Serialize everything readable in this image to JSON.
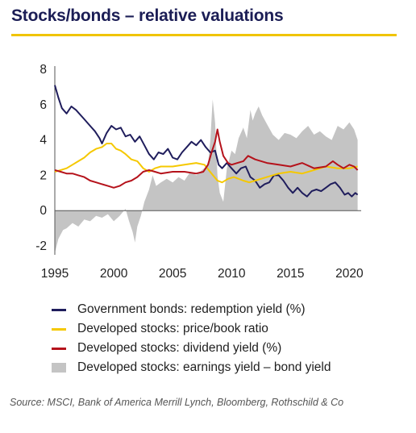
{
  "title": "Stocks/bonds – relative valuations",
  "source": "Source: MSCI, Bank of America Merrill Lynch, Bloomberg, Rothschild & Co",
  "chart_data": {
    "type": "line",
    "title": "Stocks/bonds – relative valuations",
    "xlabel": "",
    "ylabel": "",
    "xlim": [
      1995,
      2021
    ],
    "ylim": [
      -2.5,
      8
    ],
    "xticks": [
      1995,
      2000,
      2005,
      2010,
      2015,
      2020
    ],
    "yticks": [
      -2,
      0,
      2,
      4,
      6,
      8
    ],
    "grid": false,
    "legend_position": "bottom",
    "series": [
      {
        "name": "Government bonds: redemption yield (%)",
        "kind": "line",
        "color": "#1f1d5c",
        "points": [
          [
            1995,
            7.1
          ],
          [
            1995.3,
            6.4
          ],
          [
            1995.6,
            5.8
          ],
          [
            1996,
            5.5
          ],
          [
            1996.4,
            5.9
          ],
          [
            1996.8,
            5.7
          ],
          [
            1997.2,
            5.4
          ],
          [
            1997.6,
            5.1
          ],
          [
            1998,
            4.8
          ],
          [
            1998.4,
            4.5
          ],
          [
            1998.8,
            4.1
          ],
          [
            1999,
            3.8
          ],
          [
            1999.4,
            4.4
          ],
          [
            1999.8,
            4.8
          ],
          [
            2000.2,
            4.6
          ],
          [
            2000.6,
            4.7
          ],
          [
            2001,
            4.2
          ],
          [
            2001.4,
            4.3
          ],
          [
            2001.8,
            3.9
          ],
          [
            2002.2,
            4.2
          ],
          [
            2002.6,
            3.7
          ],
          [
            2003,
            3.2
          ],
          [
            2003.4,
            2.9
          ],
          [
            2003.8,
            3.3
          ],
          [
            2004.2,
            3.2
          ],
          [
            2004.6,
            3.5
          ],
          [
            2005,
            3.0
          ],
          [
            2005.4,
            2.9
          ],
          [
            2005.8,
            3.3
          ],
          [
            2006.2,
            3.6
          ],
          [
            2006.6,
            3.9
          ],
          [
            2007,
            3.7
          ],
          [
            2007.4,
            4.0
          ],
          [
            2007.8,
            3.6
          ],
          [
            2008.2,
            3.3
          ],
          [
            2008.6,
            3.4
          ],
          [
            2008.9,
            2.6
          ],
          [
            2009.2,
            2.4
          ],
          [
            2009.6,
            2.7
          ],
          [
            2010,
            2.4
          ],
          [
            2010.4,
            2.1
          ],
          [
            2010.8,
            2.4
          ],
          [
            2011.2,
            2.5
          ],
          [
            2011.6,
            1.9
          ],
          [
            2012,
            1.7
          ],
          [
            2012.4,
            1.3
          ],
          [
            2012.8,
            1.5
          ],
          [
            2013.2,
            1.6
          ],
          [
            2013.6,
            2.0
          ],
          [
            2014,
            2.0
          ],
          [
            2014.4,
            1.7
          ],
          [
            2014.8,
            1.3
          ],
          [
            2015.2,
            1.0
          ],
          [
            2015.6,
            1.3
          ],
          [
            2016,
            1.0
          ],
          [
            2016.4,
            0.8
          ],
          [
            2016.8,
            1.1
          ],
          [
            2017.2,
            1.2
          ],
          [
            2017.6,
            1.1
          ],
          [
            2018,
            1.3
          ],
          [
            2018.4,
            1.5
          ],
          [
            2018.8,
            1.6
          ],
          [
            2019.2,
            1.3
          ],
          [
            2019.6,
            0.9
          ],
          [
            2019.9,
            1.0
          ],
          [
            2020.2,
            0.8
          ],
          [
            2020.5,
            1.0
          ],
          [
            2020.7,
            0.9
          ]
        ]
      },
      {
        "name": "Developed stocks: price/book ratio",
        "kind": "line",
        "color": "#f5c800",
        "points": [
          [
            1995,
            2.2
          ],
          [
            1995.5,
            2.3
          ],
          [
            1996,
            2.4
          ],
          [
            1996.5,
            2.6
          ],
          [
            1997,
            2.8
          ],
          [
            1997.5,
            3.0
          ],
          [
            1998,
            3.3
          ],
          [
            1998.5,
            3.5
          ],
          [
            1999,
            3.6
          ],
          [
            1999.4,
            3.8
          ],
          [
            1999.8,
            3.8
          ],
          [
            2000.2,
            3.5
          ],
          [
            2000.6,
            3.4
          ],
          [
            2001,
            3.2
          ],
          [
            2001.5,
            2.9
          ],
          [
            2002,
            2.8
          ],
          [
            2002.5,
            2.4
          ],
          [
            2003,
            2.2
          ],
          [
            2003.5,
            2.4
          ],
          [
            2004,
            2.5
          ],
          [
            2005,
            2.5
          ],
          [
            2006,
            2.6
          ],
          [
            2007,
            2.7
          ],
          [
            2007.7,
            2.6
          ],
          [
            2008.3,
            2.1
          ],
          [
            2008.8,
            1.7
          ],
          [
            2009.2,
            1.6
          ],
          [
            2009.7,
            1.8
          ],
          [
            2010.2,
            1.9
          ],
          [
            2011,
            1.7
          ],
          [
            2011.5,
            1.6
          ],
          [
            2012,
            1.7
          ],
          [
            2013,
            1.9
          ],
          [
            2014,
            2.1
          ],
          [
            2015,
            2.2
          ],
          [
            2016,
            2.1
          ],
          [
            2017,
            2.3
          ],
          [
            2018,
            2.5
          ],
          [
            2019,
            2.4
          ],
          [
            2020,
            2.4
          ],
          [
            2020.7,
            2.5
          ]
        ]
      },
      {
        "name": "Developed stocks: dividend yield (%)",
        "kind": "line",
        "color": "#b5121b",
        "points": [
          [
            1995,
            2.3
          ],
          [
            1995.5,
            2.2
          ],
          [
            1996,
            2.1
          ],
          [
            1996.5,
            2.1
          ],
          [
            1997,
            2.0
          ],
          [
            1997.5,
            1.9
          ],
          [
            1998,
            1.7
          ],
          [
            1998.5,
            1.6
          ],
          [
            1999,
            1.5
          ],
          [
            1999.5,
            1.4
          ],
          [
            2000,
            1.3
          ],
          [
            2000.5,
            1.4
          ],
          [
            2001,
            1.6
          ],
          [
            2001.5,
            1.7
          ],
          [
            2002,
            1.9
          ],
          [
            2002.5,
            2.2
          ],
          [
            2003,
            2.3
          ],
          [
            2003.5,
            2.2
          ],
          [
            2004,
            2.1
          ],
          [
            2005,
            2.2
          ],
          [
            2006,
            2.2
          ],
          [
            2007,
            2.1
          ],
          [
            2007.6,
            2.2
          ],
          [
            2008,
            2.6
          ],
          [
            2008.3,
            3.3
          ],
          [
            2008.6,
            3.9
          ],
          [
            2008.8,
            4.6
          ],
          [
            2009,
            3.9
          ],
          [
            2009.3,
            3.1
          ],
          [
            2009.7,
            2.7
          ],
          [
            2010,
            2.6
          ],
          [
            2010.5,
            2.7
          ],
          [
            2011,
            2.8
          ],
          [
            2011.4,
            3.1
          ],
          [
            2012,
            2.9
          ],
          [
            2013,
            2.7
          ],
          [
            2014,
            2.6
          ],
          [
            2015,
            2.5
          ],
          [
            2016,
            2.7
          ],
          [
            2017,
            2.4
          ],
          [
            2018,
            2.5
          ],
          [
            2018.6,
            2.8
          ],
          [
            2019,
            2.6
          ],
          [
            2019.5,
            2.4
          ],
          [
            2020,
            2.6
          ],
          [
            2020.4,
            2.5
          ],
          [
            2020.7,
            2.3
          ]
        ]
      },
      {
        "name": "Developed stocks: earnings yield – bond yield",
        "kind": "area",
        "color": "#c4c4c4",
        "points": [
          [
            1995,
            -2.4
          ],
          [
            1995.3,
            -1.6
          ],
          [
            1995.7,
            -1.1
          ],
          [
            1996,
            -1.0
          ],
          [
            1996.5,
            -0.7
          ],
          [
            1997,
            -0.9
          ],
          [
            1997.5,
            -0.5
          ],
          [
            1998,
            -0.6
          ],
          [
            1998.5,
            -0.3
          ],
          [
            1999,
            -0.4
          ],
          [
            1999.5,
            -0.2
          ],
          [
            2000,
            -0.6
          ],
          [
            2000.5,
            -0.3
          ],
          [
            2001,
            0.1
          ],
          [
            2001.3,
            -0.6
          ],
          [
            2001.6,
            -1.2
          ],
          [
            2001.8,
            -1.8
          ],
          [
            2002,
            -0.9
          ],
          [
            2002.3,
            -0.3
          ],
          [
            2002.6,
            0.5
          ],
          [
            2003,
            1.2
          ],
          [
            2003.3,
            2.0
          ],
          [
            2003.6,
            1.4
          ],
          [
            2004,
            1.6
          ],
          [
            2004.5,
            1.8
          ],
          [
            2005,
            1.6
          ],
          [
            2005.5,
            1.9
          ],
          [
            2006,
            1.7
          ],
          [
            2006.5,
            2.2
          ],
          [
            2007,
            2.0
          ],
          [
            2007.5,
            2.3
          ],
          [
            2008,
            2.6
          ],
          [
            2008.2,
            4.0
          ],
          [
            2008.4,
            6.3
          ],
          [
            2008.6,
            5.0
          ],
          [
            2008.8,
            2.0
          ],
          [
            2009,
            1.0
          ],
          [
            2009.3,
            0.5
          ],
          [
            2009.6,
            2.4
          ],
          [
            2010,
            3.4
          ],
          [
            2010.3,
            3.2
          ],
          [
            2010.6,
            4.1
          ],
          [
            2011,
            4.7
          ],
          [
            2011.3,
            4.1
          ],
          [
            2011.6,
            5.7
          ],
          [
            2011.8,
            5.1
          ],
          [
            2012,
            5.5
          ],
          [
            2012.3,
            5.9
          ],
          [
            2012.6,
            5.4
          ],
          [
            2013,
            4.9
          ],
          [
            2013.5,
            4.3
          ],
          [
            2014,
            4.0
          ],
          [
            2014.5,
            4.4
          ],
          [
            2015,
            4.3
          ],
          [
            2015.5,
            4.1
          ],
          [
            2016,
            4.5
          ],
          [
            2016.5,
            4.8
          ],
          [
            2017,
            4.3
          ],
          [
            2017.5,
            4.5
          ],
          [
            2018,
            4.2
          ],
          [
            2018.5,
            4.0
          ],
          [
            2019,
            4.8
          ],
          [
            2019.5,
            4.6
          ],
          [
            2020,
            5.0
          ],
          [
            2020.4,
            4.6
          ],
          [
            2020.7,
            4.0
          ]
        ]
      }
    ]
  }
}
